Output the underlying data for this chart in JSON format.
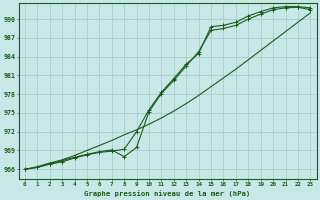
{
  "title": "Graphe pression niveau de la mer (hPa)",
  "bg_color": "#c8e8e8",
  "grid_color": "#a8cccc",
  "line_color": "#1a5c1a",
  "xlim": [
    -0.5,
    23.5
  ],
  "ylim": [
    964.5,
    992.5
  ],
  "yticks": [
    966,
    969,
    972,
    975,
    978,
    981,
    984,
    987,
    990
  ],
  "xticks": [
    0,
    1,
    2,
    3,
    4,
    5,
    6,
    7,
    8,
    9,
    10,
    11,
    12,
    13,
    14,
    15,
    16,
    17,
    18,
    19,
    20,
    21,
    22,
    23
  ],
  "line_smooth": [
    966.0,
    966.4,
    967.0,
    967.5,
    968.2,
    969.0,
    969.8,
    970.6,
    971.5,
    972.3,
    973.2,
    974.2,
    975.3,
    976.5,
    977.8,
    979.2,
    980.6,
    982.0,
    983.5,
    985.0,
    986.5,
    988.0,
    989.5,
    991.0
  ],
  "line_marked1": [
    966.0,
    966.3,
    966.8,
    967.2,
    967.8,
    968.3,
    968.7,
    968.9,
    969.2,
    972.0,
    975.5,
    978.3,
    980.5,
    982.8,
    984.5,
    988.8,
    989.0,
    989.5,
    990.5,
    991.2,
    991.8,
    992.0,
    992.0,
    991.8
  ],
  "line_marked2": [
    966.0,
    966.3,
    966.9,
    967.4,
    967.9,
    968.4,
    968.8,
    969.1,
    968.0,
    969.5,
    975.2,
    978.1,
    980.2,
    982.5,
    984.8,
    988.2,
    988.5,
    989.0,
    990.0,
    990.8,
    991.5,
    991.8,
    991.9,
    991.5
  ]
}
